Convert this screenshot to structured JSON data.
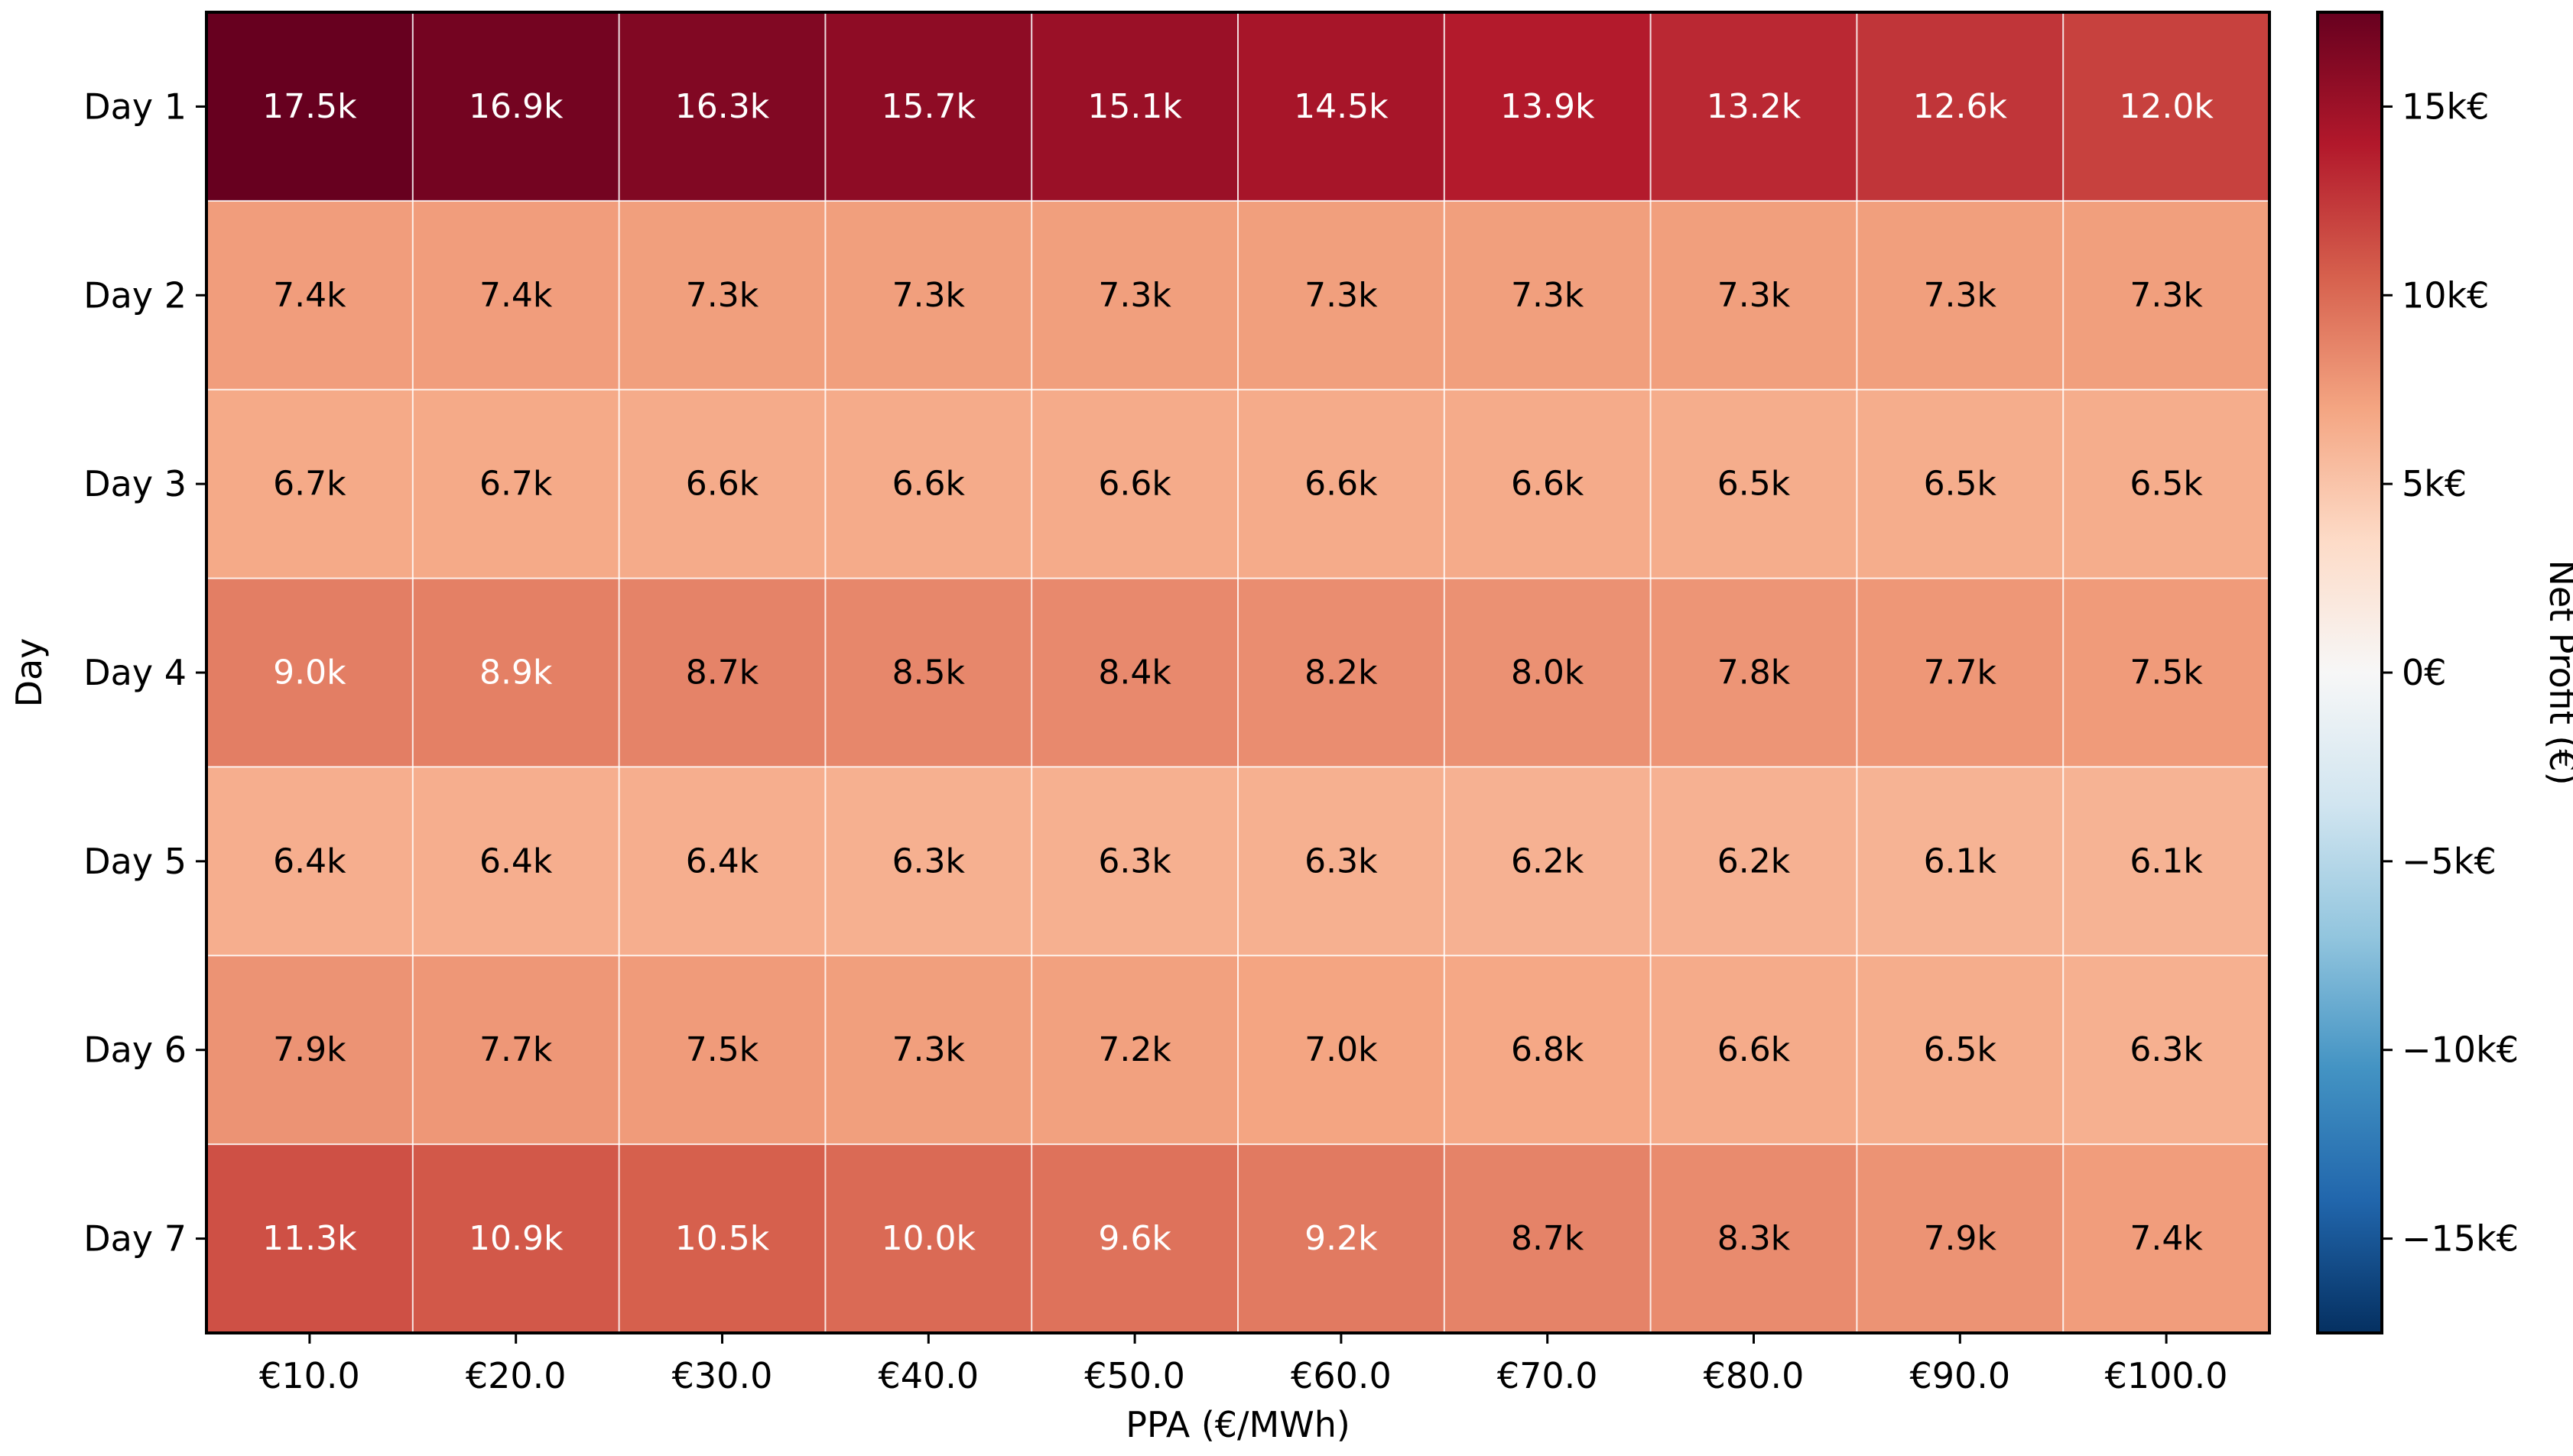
{
  "chart_data": {
    "type": "heatmap",
    "title": "",
    "xlabel": "PPA (€/MWh)",
    "ylabel": "Day",
    "x_categories": [
      "€10.0",
      "€20.0",
      "€30.0",
      "€40.0",
      "€50.0",
      "€60.0",
      "€70.0",
      "€80.0",
      "€90.0",
      "€100.0"
    ],
    "y_categories": [
      "Day 1",
      "Day 2",
      "Day 3",
      "Day 4",
      "Day 5",
      "Day 6",
      "Day 7"
    ],
    "values": [
      [
        17500,
        16900,
        16300,
        15700,
        15100,
        14500,
        13900,
        13200,
        12600,
        12000
      ],
      [
        7400,
        7400,
        7300,
        7300,
        7300,
        7300,
        7300,
        7300,
        7300,
        7300
      ],
      [
        6700,
        6700,
        6600,
        6600,
        6600,
        6600,
        6600,
        6500,
        6500,
        6500
      ],
      [
        9000,
        8900,
        8700,
        8500,
        8400,
        8200,
        8000,
        7800,
        7700,
        7500
      ],
      [
        6400,
        6400,
        6400,
        6300,
        6300,
        6300,
        6200,
        6200,
        6100,
        6100
      ],
      [
        7900,
        7700,
        7500,
        7300,
        7200,
        7000,
        6800,
        6600,
        6500,
        6300
      ],
      [
        11300,
        10900,
        10500,
        10000,
        9600,
        9200,
        8700,
        8300,
        7900,
        7400
      ]
    ],
    "cell_labels": [
      [
        "17.5k",
        "16.9k",
        "16.3k",
        "15.7k",
        "15.1k",
        "14.5k",
        "13.9k",
        "13.2k",
        "12.6k",
        "12.0k"
      ],
      [
        "7.4k",
        "7.4k",
        "7.3k",
        "7.3k",
        "7.3k",
        "7.3k",
        "7.3k",
        "7.3k",
        "7.3k",
        "7.3k"
      ],
      [
        "6.7k",
        "6.7k",
        "6.6k",
        "6.6k",
        "6.6k",
        "6.6k",
        "6.6k",
        "6.5k",
        "6.5k",
        "6.5k"
      ],
      [
        "9.0k",
        "8.9k",
        "8.7k",
        "8.5k",
        "8.4k",
        "8.2k",
        "8.0k",
        "7.8k",
        "7.7k",
        "7.5k"
      ],
      [
        "6.4k",
        "6.4k",
        "6.4k",
        "6.3k",
        "6.3k",
        "6.3k",
        "6.2k",
        "6.2k",
        "6.1k",
        "6.1k"
      ],
      [
        "7.9k",
        "7.7k",
        "7.5k",
        "7.3k",
        "7.2k",
        "7.0k",
        "6.8k",
        "6.6k",
        "6.5k",
        "6.3k"
      ],
      [
        "11.3k",
        "10.9k",
        "10.5k",
        "10.0k",
        "9.6k",
        "9.2k",
        "8.7k",
        "8.3k",
        "7.9k",
        "7.4k"
      ]
    ],
    "colormap": "RdBu_r",
    "colormap_stops": [
      "#053061",
      "#2166ac",
      "#4393c3",
      "#92c5de",
      "#d1e5f0",
      "#f7f7f7",
      "#fddbc7",
      "#f4a582",
      "#d6604d",
      "#b2182b",
      "#67001f"
    ],
    "vmin": -17500,
    "vmax": 17500,
    "label_text_white_threshold": 8800,
    "colorbar": {
      "label": "Net Profit (€)",
      "ticks": [
        {
          "value": 15000,
          "label": "15k€"
        },
        {
          "value": 10000,
          "label": "10k€"
        },
        {
          "value": 5000,
          "label": "5k€"
        },
        {
          "value": 0,
          "label": "0€"
        },
        {
          "value": -5000,
          "label": "−5k€"
        },
        {
          "value": -10000,
          "label": "−10k€"
        },
        {
          "value": -15000,
          "label": "−15k€"
        }
      ]
    }
  }
}
